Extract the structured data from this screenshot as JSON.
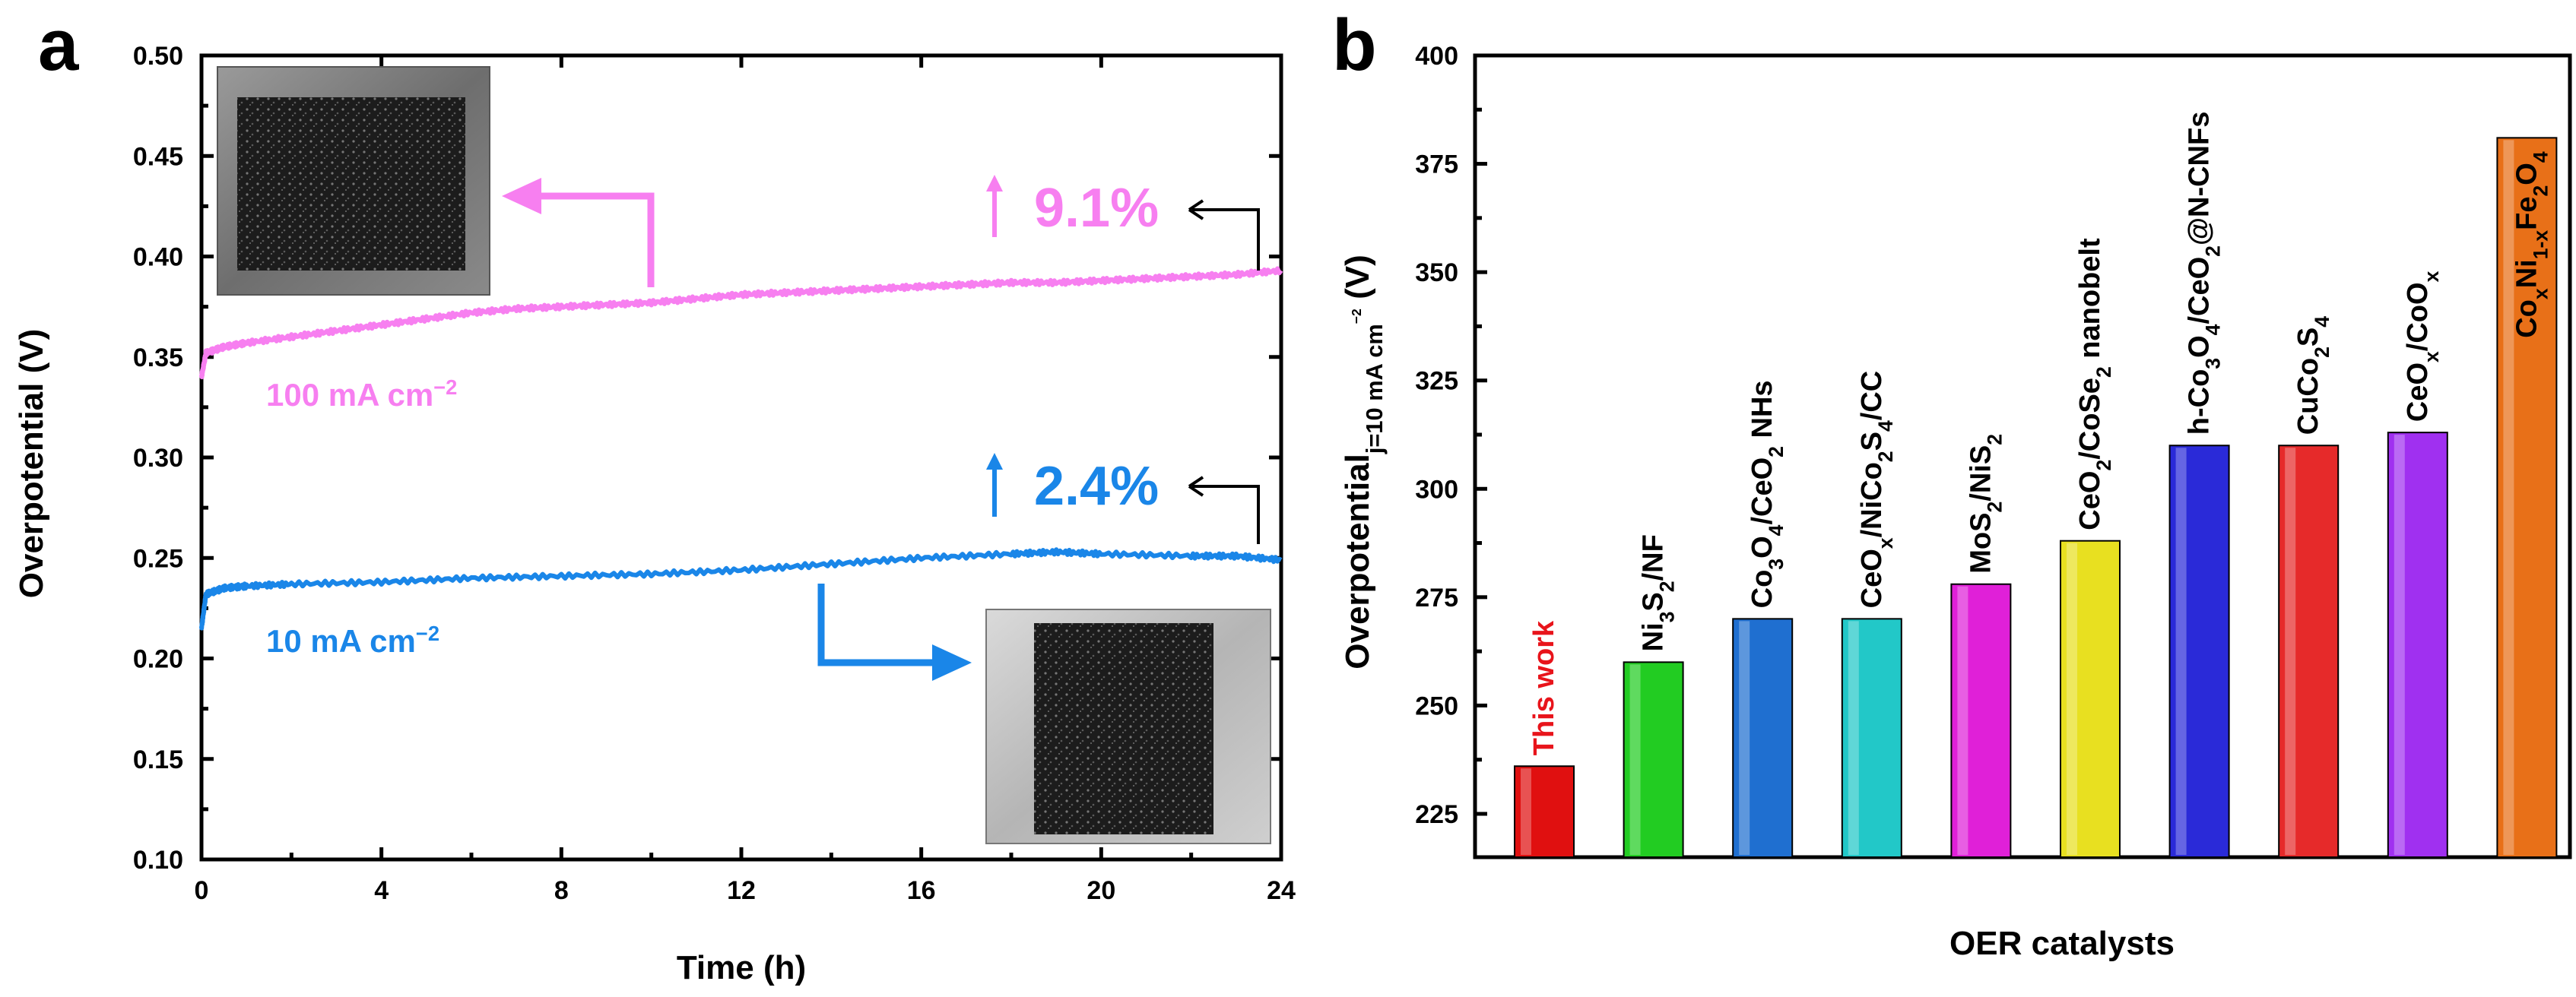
{
  "colors": {
    "pink": "#f77ff0",
    "blue": "#1a86e8",
    "black": "#000000",
    "work_red": "#e8141b"
  },
  "chart_data": [
    {
      "panel": "a",
      "type": "line",
      "title": "",
      "xlabel": "Time (h)",
      "ylabel": "Overpotential (V)",
      "xlim": [
        0,
        24
      ],
      "ylim": [
        0.1,
        0.5
      ],
      "xticks": [
        0,
        4,
        8,
        12,
        16,
        20,
        24
      ],
      "yticks": [
        "0.10",
        "0.15",
        "0.20",
        "0.25",
        "0.30",
        "0.35",
        "0.40",
        "0.45",
        "0.50"
      ],
      "grid": false,
      "series": [
        {
          "name": "100 mA cm",
          "label_sup": "−2",
          "color": "#f77ff0",
          "x": [
            0,
            0.1,
            0.5,
            1,
            2,
            3,
            4,
            5,
            6,
            7,
            8,
            9,
            10,
            11,
            12,
            13,
            14,
            15,
            16,
            17,
            18,
            19,
            20,
            21,
            22,
            23,
            24
          ],
          "y": [
            0.34,
            0.352,
            0.355,
            0.357,
            0.36,
            0.363,
            0.366,
            0.369,
            0.372,
            0.374,
            0.375,
            0.376,
            0.377,
            0.379,
            0.381,
            0.382,
            0.383,
            0.384,
            0.385,
            0.386,
            0.387,
            0.387,
            0.388,
            0.389,
            0.39,
            0.391,
            0.393
          ],
          "increase_label": "9.1%"
        },
        {
          "name": "10 mA cm",
          "label_sup": "−2",
          "color": "#1a86e8",
          "x": [
            0,
            0.1,
            0.5,
            1,
            2,
            4,
            6,
            8,
            10,
            12,
            14,
            16,
            18,
            19,
            20,
            22,
            23,
            24
          ],
          "y": [
            0.215,
            0.232,
            0.235,
            0.236,
            0.237,
            0.238,
            0.24,
            0.241,
            0.242,
            0.244,
            0.247,
            0.25,
            0.252,
            0.253,
            0.252,
            0.251,
            0.251,
            0.249
          ],
          "increase_label": "2.4%"
        }
      ],
      "annotations": [
        "up-arrow",
        "left-arrow",
        "inset photo of electrode before test",
        "inset photo of electrode after test"
      ]
    },
    {
      "panel": "b",
      "type": "bar",
      "title": "",
      "xlabel": "OER catalysts",
      "ylabel_main": "Overpotential",
      "ylabel_sub": "j=10 mA cm",
      "ylabel_sub_sup": "−2",
      "ylabel_unit": " (V)",
      "ylim": [
        215,
        400
      ],
      "yticks": [
        225,
        250,
        275,
        300,
        325,
        350,
        375,
        400
      ],
      "grid": false,
      "categories": [
        "This work",
        "Ni3S2/NF",
        "Co3O4/CeO2 NHs",
        "CeOx/NiCo2S4/CC",
        "MoS2/NiS2",
        "CeO2/CoSe2 nanobelt",
        "h-Co3O4/CeO2@N-CNFs",
        "CuCo2S4",
        "CeOx/CoOx",
        "CoxNi1-xFe2O4"
      ],
      "values": [
        236,
        260,
        270,
        270,
        278,
        288,
        310,
        310,
        313,
        381
      ],
      "bar_colors": [
        "#e01010",
        "#22cc22",
        "#1f6fd0",
        "#22c8c8",
        "#e020d8",
        "#e8e020",
        "#2a2ad8",
        "#e62a2a",
        "#a030f0",
        "#e87018"
      ],
      "label_parts": [
        [
          [
            "This work",
            ""
          ]
        ],
        [
          [
            "Ni",
            ""
          ],
          [
            "3",
            "sub"
          ],
          [
            "S",
            ""
          ],
          [
            "2",
            "sub"
          ],
          [
            "/NF",
            ""
          ]
        ],
        [
          [
            "Co",
            ""
          ],
          [
            "3",
            "sub"
          ],
          [
            "O",
            ""
          ],
          [
            "4",
            "sub"
          ],
          [
            "/CeO",
            ""
          ],
          [
            "2",
            "sub"
          ],
          [
            " NHs",
            ""
          ]
        ],
        [
          [
            "CeO",
            ""
          ],
          [
            "x",
            "sub"
          ],
          [
            "/NiCo",
            ""
          ],
          [
            "2",
            "sub"
          ],
          [
            "S",
            ""
          ],
          [
            "4",
            "sub"
          ],
          [
            "/CC",
            ""
          ]
        ],
        [
          [
            "MoS",
            ""
          ],
          [
            "2",
            "sub"
          ],
          [
            "/NiS",
            ""
          ],
          [
            "2",
            "sub"
          ]
        ],
        [
          [
            "CeO",
            ""
          ],
          [
            "2",
            "sub"
          ],
          [
            "/CoSe",
            ""
          ],
          [
            "2",
            "sub"
          ],
          [
            " nanobelt",
            ""
          ]
        ],
        [
          [
            "h-Co",
            ""
          ],
          [
            "3",
            "sub"
          ],
          [
            "O",
            ""
          ],
          [
            "4",
            "sub"
          ],
          [
            "/CeO",
            ""
          ],
          [
            "2",
            "sub"
          ],
          [
            "@N-CNFs",
            ""
          ]
        ],
        [
          [
            "CuCo",
            ""
          ],
          [
            "2",
            "sub"
          ],
          [
            "S",
            ""
          ],
          [
            "4",
            "sub"
          ]
        ],
        [
          [
            "CeO",
            ""
          ],
          [
            "x",
            "sub"
          ],
          [
            "/CoO",
            ""
          ],
          [
            "x",
            "sub"
          ]
        ],
        [
          [
            "Co",
            ""
          ],
          [
            "x",
            "sub"
          ],
          [
            "Ni",
            ""
          ],
          [
            "1-x",
            "sub"
          ],
          [
            "Fe",
            ""
          ],
          [
            "2",
            "sub"
          ],
          [
            "O",
            ""
          ],
          [
            "4",
            "sub"
          ]
        ]
      ]
    }
  ]
}
